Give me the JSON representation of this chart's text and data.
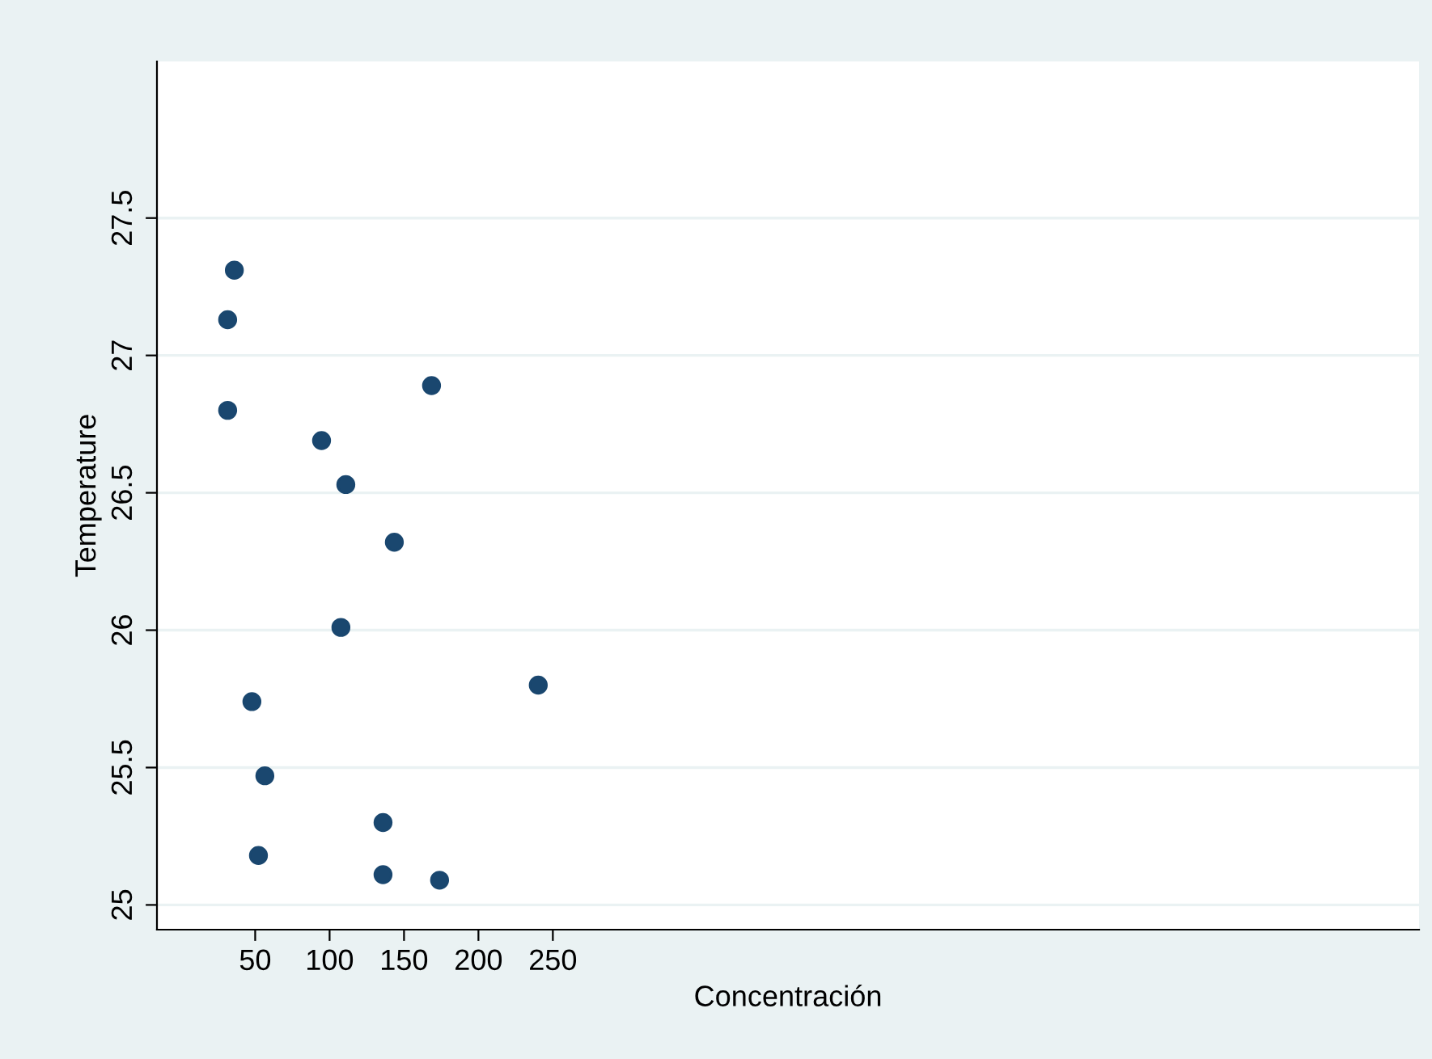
{
  "chart_data": {
    "type": "scatter",
    "xlabel": "Concentración",
    "ylabel": "Temperature",
    "x": [
      36,
      31.5,
      31.5,
      168.5,
      94.6,
      110.9,
      143.5,
      107.6,
      240.2,
      47.8,
      56.5,
      135.9,
      52.2,
      135.9,
      173.9
    ],
    "series": [
      {
        "color": "#1a476f",
        "values": [
          27.31,
          27.13,
          26.8,
          26.89,
          26.69,
          26.53,
          26.32,
          26.01,
          25.8,
          25.74,
          25.47,
          25.3,
          25.18,
          25.11,
          25.09
        ]
      }
    ],
    "xlim": [
      -16,
      832
    ],
    "xticks": [
      50,
      100,
      150,
      200,
      250
    ],
    "ylim": [
      24.91,
      28.07
    ],
    "yticks": [
      25,
      25.5,
      26,
      26.5,
      27,
      27.5
    ],
    "grid": "y",
    "marker": "circle"
  }
}
